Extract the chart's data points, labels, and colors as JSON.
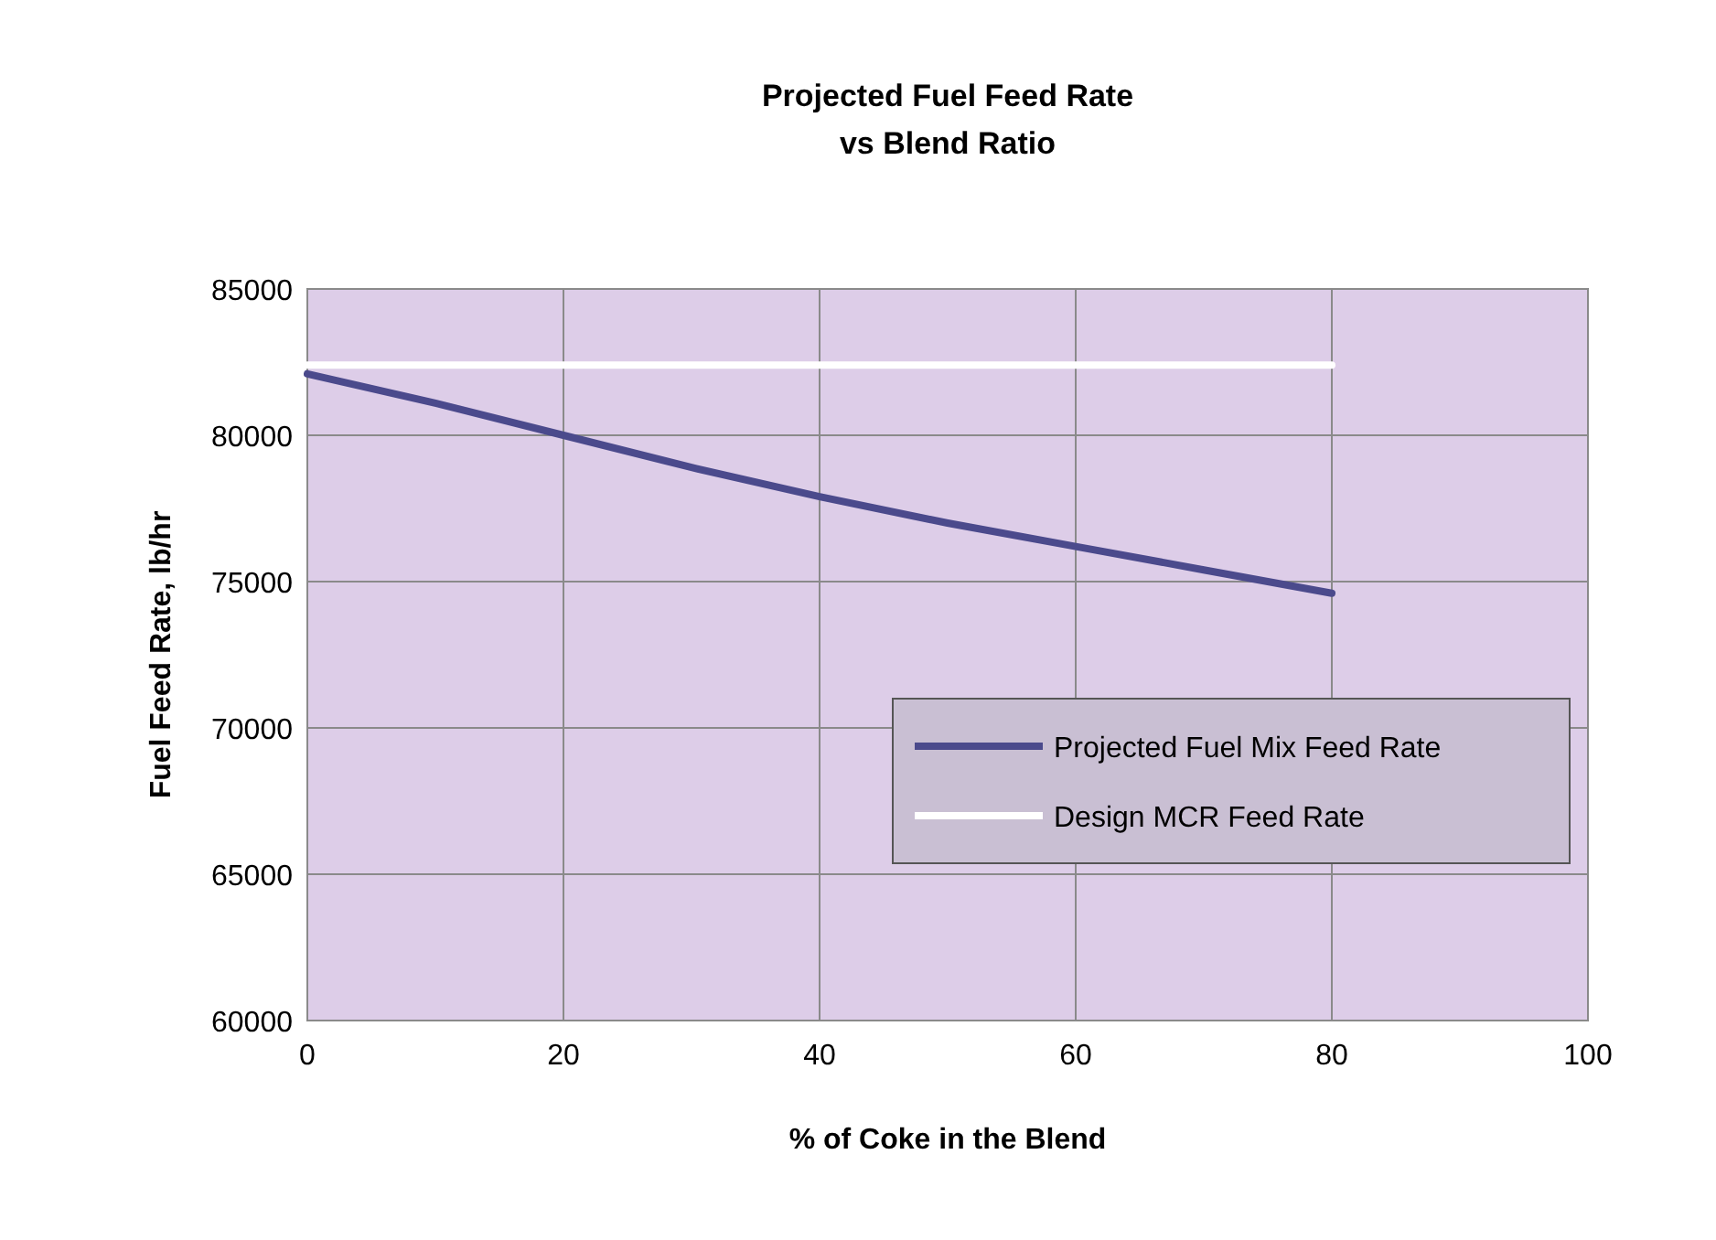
{
  "chart_data": {
    "type": "line",
    "title": "Projected Fuel Feed Rate\nvs Blend Ratio",
    "xlabel": "% of Coke in the Blend",
    "ylabel": "Fuel Feed Rate, lb/hr",
    "x": [
      0,
      10,
      20,
      30,
      40,
      50,
      60,
      70,
      80
    ],
    "series": [
      {
        "name": "Projected Fuel Mix Feed Rate",
        "color": "#4b4a8c",
        "values": [
          82100,
          81100,
          80000,
          78900,
          77900,
          77000,
          76200,
          75400,
          74600
        ]
      },
      {
        "name": "Design MCR Feed Rate",
        "color": "#ffffff",
        "x": [
          0,
          80
        ],
        "values": [
          82400,
          82400
        ]
      }
    ],
    "xlim": [
      0,
      100
    ],
    "xticks": [
      0,
      20,
      40,
      60,
      80,
      100
    ],
    "ylim": [
      60000,
      85000
    ],
    "yticks": [
      60000,
      65000,
      70000,
      75000,
      80000,
      85000
    ],
    "grid": true,
    "legend": "right",
    "marker": "none",
    "line_style": "solid"
  }
}
